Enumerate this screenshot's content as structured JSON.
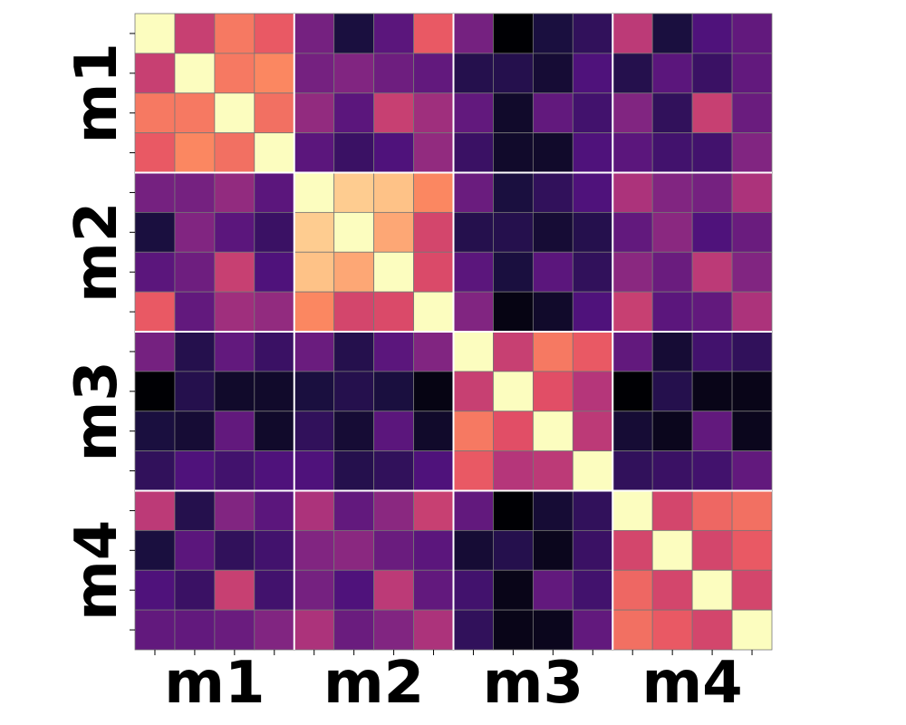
{
  "chart_data": {
    "type": "heatmap",
    "colormap": "magma",
    "block_size": 4,
    "row_group_labels": [
      "m1",
      "m2",
      "m3",
      "m4"
    ],
    "col_group_labels": [
      "m1",
      "m2",
      "m3",
      "m4"
    ],
    "values": [
      [
        1.0,
        0.55,
        0.72,
        0.65,
        0.35,
        0.12,
        0.28,
        0.65,
        0.35,
        0.0,
        0.12,
        0.18,
        0.52,
        0.12,
        0.25,
        0.3
      ],
      [
        0.55,
        1.0,
        0.72,
        0.75,
        0.35,
        0.38,
        0.33,
        0.3,
        0.15,
        0.15,
        0.1,
        0.25,
        0.15,
        0.28,
        0.2,
        0.3
      ],
      [
        0.72,
        0.72,
        1.0,
        0.7,
        0.42,
        0.28,
        0.55,
        0.45,
        0.3,
        0.08,
        0.3,
        0.22,
        0.38,
        0.18,
        0.55,
        0.32
      ],
      [
        0.65,
        0.75,
        0.7,
        1.0,
        0.28,
        0.2,
        0.25,
        0.42,
        0.2,
        0.08,
        0.08,
        0.25,
        0.28,
        0.22,
        0.22,
        0.38
      ],
      [
        0.35,
        0.35,
        0.42,
        0.28,
        1.0,
        0.9,
        0.88,
        0.75,
        0.32,
        0.12,
        0.18,
        0.25,
        0.48,
        0.38,
        0.35,
        0.48
      ],
      [
        0.12,
        0.38,
        0.28,
        0.2,
        0.9,
        1.0,
        0.82,
        0.58,
        0.15,
        0.15,
        0.1,
        0.15,
        0.3,
        0.4,
        0.25,
        0.32
      ],
      [
        0.28,
        0.33,
        0.55,
        0.25,
        0.88,
        0.82,
        1.0,
        0.6,
        0.28,
        0.12,
        0.28,
        0.18,
        0.4,
        0.32,
        0.52,
        0.38
      ],
      [
        0.65,
        0.3,
        0.45,
        0.42,
        0.75,
        0.58,
        0.6,
        1.0,
        0.38,
        0.03,
        0.08,
        0.25,
        0.55,
        0.28,
        0.3,
        0.48
      ],
      [
        0.35,
        0.15,
        0.3,
        0.2,
        0.32,
        0.15,
        0.28,
        0.38,
        1.0,
        0.55,
        0.72,
        0.65,
        0.3,
        0.1,
        0.22,
        0.18
      ],
      [
        0.0,
        0.15,
        0.08,
        0.08,
        0.12,
        0.15,
        0.12,
        0.03,
        0.55,
        1.0,
        0.62,
        0.5,
        0.0,
        0.15,
        0.04,
        0.04
      ],
      [
        0.12,
        0.1,
        0.3,
        0.08,
        0.18,
        0.1,
        0.28,
        0.08,
        0.72,
        0.62,
        1.0,
        0.52,
        0.1,
        0.05,
        0.3,
        0.05
      ],
      [
        0.18,
        0.25,
        0.22,
        0.25,
        0.25,
        0.15,
        0.18,
        0.25,
        0.65,
        0.5,
        0.52,
        1.0,
        0.18,
        0.2,
        0.22,
        0.3
      ],
      [
        0.52,
        0.15,
        0.38,
        0.28,
        0.48,
        0.3,
        0.4,
        0.55,
        0.3,
        0.0,
        0.1,
        0.18,
        1.0,
        0.58,
        0.68,
        0.7
      ],
      [
        0.12,
        0.28,
        0.18,
        0.22,
        0.38,
        0.4,
        0.32,
        0.28,
        0.1,
        0.15,
        0.05,
        0.2,
        0.58,
        1.0,
        0.58,
        0.65
      ],
      [
        0.25,
        0.2,
        0.55,
        0.22,
        0.35,
        0.25,
        0.52,
        0.3,
        0.22,
        0.04,
        0.3,
        0.22,
        0.68,
        0.58,
        1.0,
        0.58
      ],
      [
        0.3,
        0.3,
        0.32,
        0.38,
        0.48,
        0.32,
        0.38,
        0.48,
        0.18,
        0.04,
        0.05,
        0.3,
        0.7,
        0.65,
        0.58,
        1.0
      ]
    ]
  }
}
